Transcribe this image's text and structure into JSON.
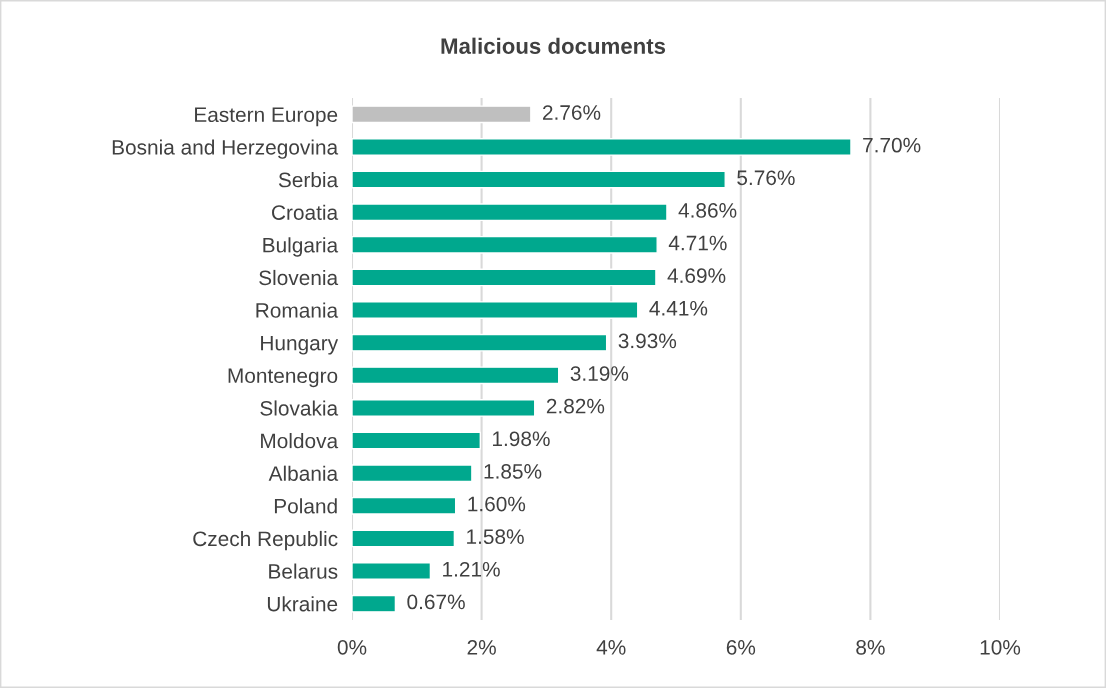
{
  "chart_data": {
    "type": "bar",
    "orientation": "horizontal",
    "title": "Malicious documents",
    "categories": [
      "Eastern Europe",
      "Bosnia and Herzegovina",
      "Serbia",
      "Croatia",
      "Bulgaria",
      "Slovenia",
      "Romania",
      "Hungary",
      "Montenegro",
      "Slovakia",
      "Moldova",
      "Albania",
      "Poland",
      "Czech Republic",
      "Belarus",
      "Ukraine"
    ],
    "values": [
      2.76,
      7.7,
      5.76,
      4.86,
      4.71,
      4.69,
      4.41,
      3.93,
      3.19,
      2.82,
      1.98,
      1.85,
      1.6,
      1.58,
      1.21,
      0.67
    ],
    "value_labels": [
      "2.76%",
      "7.70%",
      "5.76%",
      "4.86%",
      "4.71%",
      "4.69%",
      "4.41%",
      "3.93%",
      "3.19%",
      "2.82%",
      "1.98%",
      "1.85%",
      "1.60%",
      "1.58%",
      "1.21%",
      "0.67%"
    ],
    "colors": [
      "#bfbfbf",
      "#00a88e",
      "#00a88e",
      "#00a88e",
      "#00a88e",
      "#00a88e",
      "#00a88e",
      "#00a88e",
      "#00a88e",
      "#00a88e",
      "#00a88e",
      "#00a88e",
      "#00a88e",
      "#00a88e",
      "#00a88e",
      "#00a88e"
    ],
    "xlim": [
      0,
      10
    ],
    "xticks": [
      {
        "value": 0,
        "label": "0%"
      },
      {
        "value": 2,
        "label": "2%"
      },
      {
        "value": 4,
        "label": "4%"
      },
      {
        "value": 6,
        "label": "6%"
      },
      {
        "value": 8,
        "label": "8%"
      },
      {
        "value": 10,
        "label": "10%"
      }
    ],
    "grid": "x"
  }
}
